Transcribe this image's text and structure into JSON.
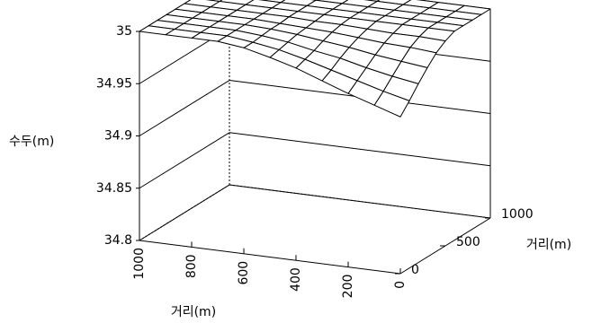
{
  "chart_data": {
    "type": "surface",
    "x_label": "거리(m)",
    "y_label": "거리(m)",
    "z_label": "수두(m)",
    "x": [
      0,
      100,
      200,
      300,
      400,
      500,
      600,
      700,
      800,
      900,
      1000
    ],
    "y": [
      0,
      100,
      200,
      300,
      400,
      500,
      600,
      700,
      800,
      900,
      1000
    ],
    "z": [
      [
        34.95,
        34.958,
        34.966,
        34.975,
        34.984,
        34.991,
        34.997,
        35,
        35,
        35,
        35
      ],
      [
        34.96,
        34.966,
        34.973,
        34.98,
        34.987,
        34.993,
        34.997,
        35,
        35,
        35,
        35
      ],
      [
        34.971,
        34.975,
        34.98,
        34.986,
        34.99,
        34.995,
        34.998,
        35,
        35,
        35,
        35
      ],
      [
        34.981,
        34.984,
        34.987,
        34.991,
        34.994,
        34.997,
        34.999,
        35,
        35,
        35,
        35
      ],
      [
        34.99,
        34.992,
        34.993,
        34.995,
        34.997,
        34.998,
        34.999,
        35,
        35,
        35,
        35
      ],
      [
        34.996,
        34.997,
        34.997,
        34.998,
        34.999,
        34.999,
        35,
        35,
        35,
        35,
        35
      ],
      [
        35,
        35,
        35,
        35,
        35,
        35,
        35,
        35,
        35,
        35,
        35
      ],
      [
        35,
        35,
        35,
        35,
        35,
        35,
        35,
        35,
        35,
        35,
        35
      ],
      [
        35,
        35,
        35,
        35,
        35,
        35,
        35,
        35,
        35,
        35,
        35
      ],
      [
        35,
        35,
        35,
        35,
        35,
        35,
        35,
        35,
        35,
        35,
        35
      ],
      [
        35,
        35,
        35,
        35,
        35,
        35,
        35,
        35,
        35,
        35,
        35
      ]
    ],
    "xlim": [
      0,
      1000
    ],
    "xticks": [
      0,
      200,
      400,
      600,
      800,
      1000
    ],
    "ylim": [
      0,
      1000
    ],
    "yticks": [
      0,
      500,
      1000
    ],
    "zlim": [
      34.8,
      35
    ],
    "zticks": [
      34.8,
      34.85,
      34.9,
      34.95,
      35
    ],
    "x_reversed": true,
    "grid": true,
    "color": "#000000"
  }
}
